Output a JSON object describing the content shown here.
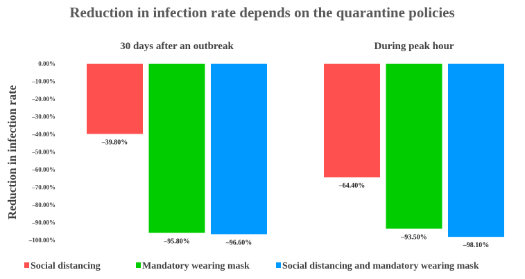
{
  "chart_data": {
    "type": "bar",
    "title": "Reduction in infection rate depends on the quarantine policies",
    "ylabel": "Reduction in infection rate",
    "ylim": [
      -100,
      0
    ],
    "yticks": [
      "0.00%",
      "-10.00%",
      "-20.00%",
      "-30.00%",
      "-40.00%",
      "-50.00%",
      "-60.00%",
      "-70.00%",
      "-80.00%",
      "-90.00%",
      "-100.00%"
    ],
    "grid": false,
    "legend": "bottom",
    "categories": [
      "30 days after an outbreak",
      "During peak hour"
    ],
    "series": [
      {
        "name": "Social distancing",
        "color": "#ff5050",
        "values": [
          -39.8,
          -64.4
        ],
        "labels": [
          "-39.80%",
          "-64.40%"
        ]
      },
      {
        "name": "Mandatory wearing mask",
        "color": "#00cc00",
        "values": [
          -95.8,
          -93.5
        ],
        "labels": [
          "-95.80%",
          "-93.50%"
        ]
      },
      {
        "name": "Social distancing and mandatory wearing mask",
        "color": "#0099ff",
        "values": [
          -96.6,
          -98.1
        ],
        "labels": [
          "-96.60%",
          "-98.10%"
        ]
      }
    ]
  }
}
